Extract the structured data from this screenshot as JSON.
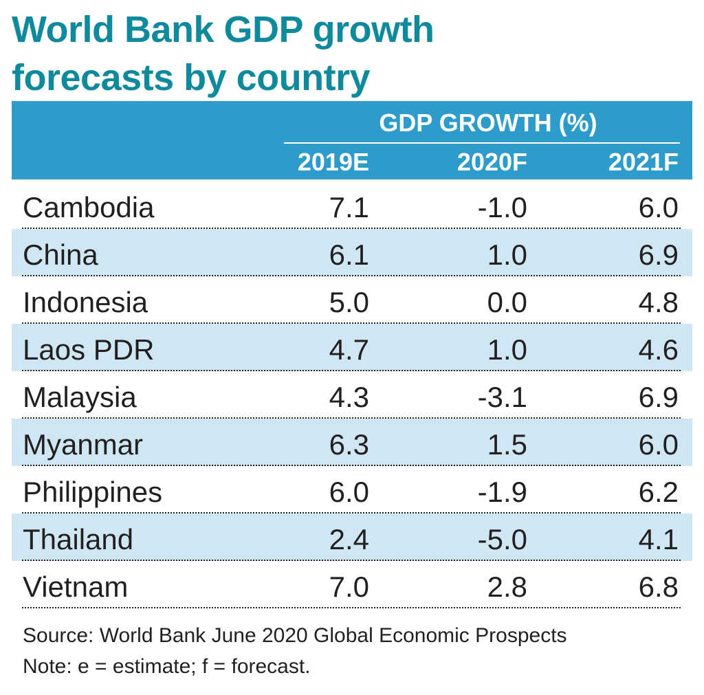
{
  "title": "World Bank GDP growth forecasts by country",
  "header": {
    "group_label": "GDP GROWTH (%)",
    "columns": [
      "2019E",
      "2020F",
      "2021F"
    ]
  },
  "chart_data": {
    "type": "table",
    "title": "World Bank GDP growth forecasts by country",
    "column_group": "GDP GROWTH (%)",
    "columns": [
      "2019E",
      "2020F",
      "2021F"
    ],
    "rows": [
      {
        "country": "Cambodia",
        "values": [
          "7.1",
          "-1.0",
          "6.0"
        ]
      },
      {
        "country": "China",
        "values": [
          "6.1",
          "1.0",
          "6.9"
        ]
      },
      {
        "country": "Indonesia",
        "values": [
          "5.0",
          "0.0",
          "4.8"
        ]
      },
      {
        "country": "Laos PDR",
        "values": [
          "4.7",
          "1.0",
          "4.6"
        ]
      },
      {
        "country": "Malaysia",
        "values": [
          "4.3",
          "-3.1",
          "6.9"
        ]
      },
      {
        "country": "Myanmar",
        "values": [
          "6.3",
          "1.5",
          "6.0"
        ]
      },
      {
        "country": "Philippines",
        "values": [
          "6.0",
          "-1.9",
          "6.2"
        ]
      },
      {
        "country": "Thailand",
        "values": [
          "2.4",
          "-5.0",
          "4.1"
        ]
      },
      {
        "country": "Vietnam",
        "values": [
          "7.0",
          "2.8",
          "6.8"
        ]
      }
    ]
  },
  "footer": {
    "source": "Source: World Bank June 2020 Global Economic Prospects",
    "note": "Note: e = estimate; f = forecast."
  },
  "colors": {
    "title": "#0e8a9c",
    "header_background": "#2d9cca",
    "row_shade": "#cfe6f3",
    "header_text": "#ffffff"
  }
}
